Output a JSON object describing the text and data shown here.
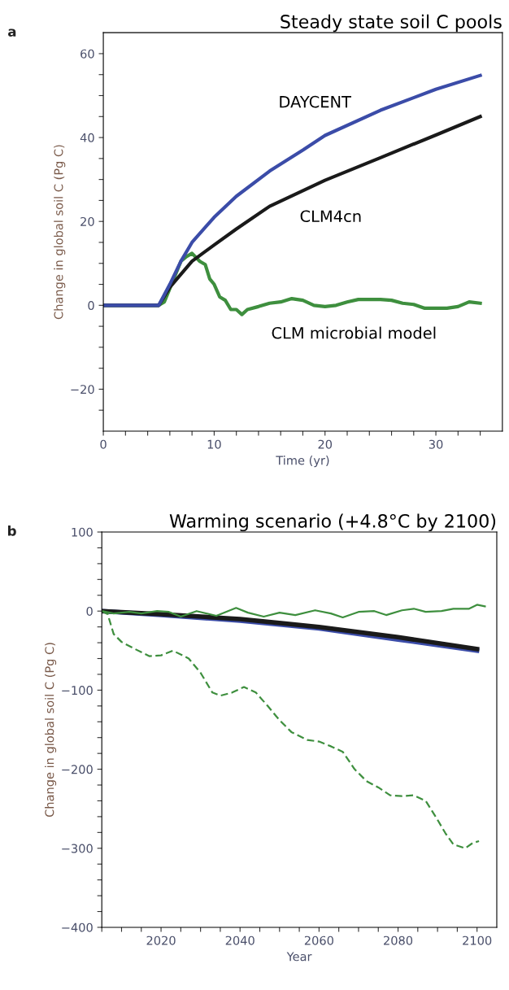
{
  "chart_data": [
    {
      "type": "line",
      "title": "Steady state soil C pools",
      "xlabel": "Time (yr)",
      "ylabel": "Change in global soil C (Pg C)",
      "xlim": [
        0,
        36
      ],
      "xticks": [
        0,
        {
          "value": 2,
          "label": null
        },
        {
          "value": 4,
          "label": null
        },
        {
          "value": 6,
          "label": null
        },
        {
          "value": 8,
          "label": null
        },
        10,
        {
          "value": 12,
          "label": null
        },
        {
          "value": 14,
          "label": null
        },
        {
          "value": 16,
          "label": null
        },
        {
          "value": 18,
          "label": null
        },
        20,
        {
          "value": 22,
          "label": null
        },
        {
          "value": 24,
          "label": null
        },
        {
          "value": 26,
          "label": null
        },
        {
          "value": 28,
          "label": null
        },
        30,
        {
          "value": 32,
          "label": null
        },
        {
          "value": 34,
          "label": null
        }
      ],
      "ylim": [
        -30,
        65
      ],
      "yticks": [
        {
          "value": -25,
          "label": null
        },
        -20,
        {
          "value": -15,
          "label": null
        },
        {
          "value": -10,
          "label": null
        },
        {
          "value": -5,
          "label": null
        },
        0,
        {
          "value": 5,
          "label": null
        },
        {
          "value": 10,
          "label": null
        },
        {
          "value": 15,
          "label": null
        },
        20,
        {
          "value": 25,
          "label": null
        },
        {
          "value": 30,
          "label": null
        },
        {
          "value": 35,
          "label": null
        },
        40,
        {
          "value": 45,
          "label": null
        },
        {
          "value": 50,
          "label": null
        },
        {
          "value": 55,
          "label": null
        },
        60
      ],
      "grid": false,
      "line_style": "solid",
      "series": [
        {
          "color": "#3e8f3e",
          "x": [
            0,
            5,
            5.5,
            6,
            7,
            7.5,
            8,
            8.7,
            9.2,
            9.6,
            10,
            10.5,
            11,
            11.5,
            12,
            12.5,
            13,
            14,
            15,
            16,
            17,
            18,
            19,
            20,
            21,
            22,
            23,
            24,
            25,
            26,
            27,
            28,
            29,
            30,
            31,
            32,
            33,
            34
          ],
          "values": [
            0,
            0,
            0.8,
            4,
            10.5,
            11.6,
            12.4,
            10.5,
            9.7,
            6.3,
            5,
            2,
            1.2,
            -1,
            -1,
            -2.2,
            -1,
            -0.3,
            0.5,
            0.8,
            1.6,
            1.2,
            0,
            -0.3,
            0,
            0.8,
            1.4,
            1.4,
            1.4,
            1.2,
            0.5,
            0.2,
            -0.7,
            -0.7,
            -0.7,
            -0.3,
            0.8,
            0.5
          ]
        },
        {
          "color": "#1a1a1a",
          "x": [
            0,
            5,
            6,
            8,
            10,
            12,
            15,
            20,
            25,
            30,
            34
          ],
          "values": [
            0,
            0,
            4.3,
            10.5,
            14.4,
            18.2,
            23.6,
            29.8,
            35.2,
            40.6,
            45
          ]
        },
        {
          "color": "#3b4ca8",
          "x": [
            0,
            5,
            6,
            7,
            8,
            10,
            12,
            15,
            18,
            20,
            25,
            30,
            34
          ],
          "values": [
            0,
            0,
            5,
            10.5,
            15,
            21,
            26,
            32,
            37,
            40.5,
            46.5,
            51.5,
            54.8
          ]
        }
      ],
      "annotations": [
        "a",
        "DAYCENT",
        "CLM4cn",
        "CLM microbial model"
      ]
    },
    {
      "type": "line",
      "title": "Warming scenario (+4.8°C by 2100)",
      "xlabel": "Year",
      "ylabel": "Change in global soil C (Pg C)",
      "xlim": [
        2005,
        2105
      ],
      "xticks": [
        {
          "value": 2005,
          "label": null
        },
        {
          "value": 2010,
          "label": null
        },
        {
          "value": 2015,
          "label": null
        },
        2020,
        {
          "value": 2025,
          "label": null
        },
        {
          "value": 2030,
          "label": null
        },
        {
          "value": 2035,
          "label": null
        },
        2040,
        {
          "value": 2045,
          "label": null
        },
        {
          "value": 2050,
          "label": null
        },
        {
          "value": 2055,
          "label": null
        },
        2060,
        {
          "value": 2065,
          "label": null
        },
        {
          "value": 2070,
          "label": null
        },
        {
          "value": 2075,
          "label": null
        },
        2080,
        {
          "value": 2085,
          "label": null
        },
        {
          "value": 2090,
          "label": null
        },
        {
          "value": 2095,
          "label": null
        },
        2100
      ],
      "ylim": [
        -400,
        100
      ],
      "yticks": [
        -400,
        {
          "value": -380,
          "label": null
        },
        {
          "value": -360,
          "label": null
        },
        {
          "value": -340,
          "label": null
        },
        {
          "value": -320,
          "label": null
        },
        -300,
        {
          "value": -280,
          "label": null
        },
        {
          "value": -260,
          "label": null
        },
        {
          "value": -240,
          "label": null
        },
        {
          "value": -220,
          "label": null
        },
        -200,
        {
          "value": -180,
          "label": null
        },
        {
          "value": -160,
          "label": null
        },
        {
          "value": -140,
          "label": null
        },
        {
          "value": -120,
          "label": null
        },
        -100,
        {
          "value": -80,
          "label": null
        },
        {
          "value": -60,
          "label": null
        },
        {
          "value": -40,
          "label": null
        },
        {
          "value": -20,
          "label": null
        },
        0,
        {
          "value": 20,
          "label": null
        },
        {
          "value": 40,
          "label": null
        },
        {
          "value": 60,
          "label": null
        },
        {
          "value": 80,
          "label": null
        },
        100
      ],
      "grid": false,
      "series": [
        {
          "color": "#3b4ca8",
          "x": [
            2005,
            2020,
            2040,
            2060,
            2080,
            2100
          ],
          "values": [
            0,
            -5,
            -12,
            -22,
            -36,
            -50
          ]
        },
        {
          "color": "#1a1a1a",
          "x": [
            2005,
            2020,
            2040,
            2060,
            2080,
            2100
          ],
          "values": [
            0,
            -4,
            -10,
            -20,
            -33,
            -48
          ]
        },
        {
          "color": "#3e8f3e",
          "line_style": "solid",
          "x": [
            2005,
            2008,
            2012,
            2015,
            2019,
            2022,
            2025,
            2029,
            2034,
            2039,
            2042,
            2046,
            2050,
            2054,
            2059,
            2063,
            2066,
            2070,
            2074,
            2077,
            2081,
            2084,
            2087,
            2091,
            2094,
            2098,
            2100,
            2102
          ],
          "values": [
            0,
            -3,
            -1,
            -3,
            0,
            -1,
            -7,
            0,
            -6,
            4,
            -2,
            -7,
            -2,
            -5,
            1,
            -3,
            -8,
            -1,
            0,
            -5,
            1,
            3,
            -1,
            0,
            3,
            3,
            8,
            6
          ]
        },
        {
          "color": "#3e8f3e",
          "line_style": "dashed",
          "x": [
            2005,
            2006.5,
            2008,
            2010,
            2013,
            2017,
            2020,
            2023,
            2027,
            2030,
            2033,
            2035,
            2038,
            2041,
            2044,
            2047,
            2050,
            2053,
            2057,
            2060,
            2063,
            2066,
            2069,
            2072,
            2075,
            2078,
            2081,
            2084,
            2087,
            2090,
            2092,
            2094,
            2097,
            2099,
            2100.5
          ],
          "values": [
            0,
            -4,
            -29,
            -39,
            -47,
            -57,
            -56,
            -50,
            -60,
            -78,
            -103,
            -107,
            -103,
            -96,
            -103,
            -120,
            -138,
            -153,
            -163,
            -165,
            -171,
            -178,
            -200,
            -215,
            -223,
            -233,
            -234,
            -233,
            -240,
            -264,
            -281,
            -295,
            -300,
            -293,
            -291
          ]
        }
      ],
      "annotations": [
        "b"
      ]
    }
  ]
}
